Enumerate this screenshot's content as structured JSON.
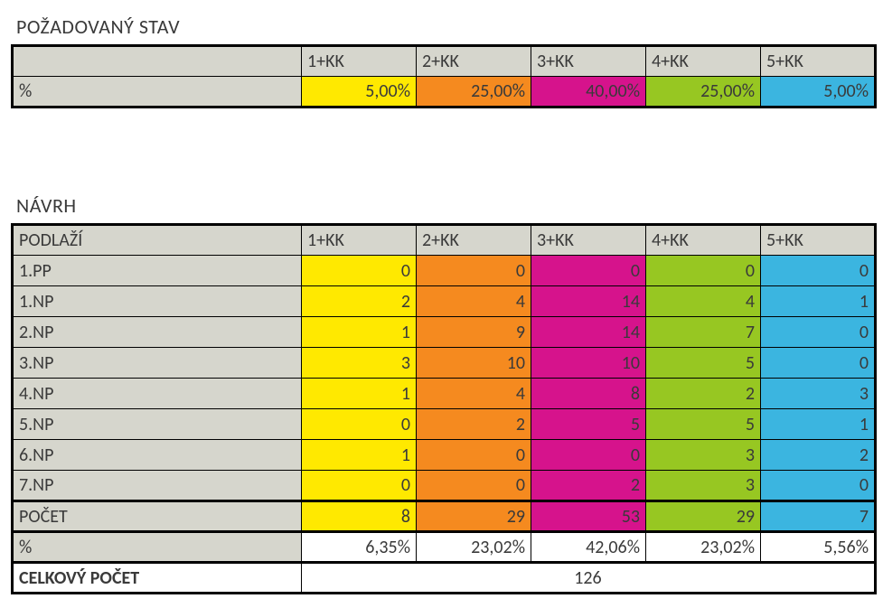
{
  "colors": {
    "header_bg": "#d6d6cd",
    "col1": "#ffe900",
    "col2": "#f58a1f",
    "col3": "#d6138c",
    "col4": "#97c722",
    "col5": "#3bb5e0",
    "text": "#3a3a3a",
    "border": "#000000",
    "white": "#ffffff"
  },
  "columns": [
    "1+KK",
    "2+KK",
    "3+KK",
    "4+KK",
    "5+KK"
  ],
  "pozadovany": {
    "title": "POŽADOVANÝ STAV",
    "row_label": "%",
    "values": [
      "5,00%",
      "25,00%",
      "40,00%",
      "25,00%",
      "5,00%"
    ]
  },
  "navrh": {
    "title": "NÁVRH",
    "header_label": "PODLAŽÍ",
    "rows": [
      {
        "label": "1.PP",
        "v": [
          "0",
          "0",
          "0",
          "0",
          "0"
        ]
      },
      {
        "label": "1.NP",
        "v": [
          "2",
          "4",
          "14",
          "4",
          "1"
        ]
      },
      {
        "label": "2.NP",
        "v": [
          "1",
          "9",
          "14",
          "7",
          "0"
        ]
      },
      {
        "label": "3.NP",
        "v": [
          "3",
          "10",
          "10",
          "5",
          "0"
        ]
      },
      {
        "label": "4.NP",
        "v": [
          "1",
          "4",
          "8",
          "2",
          "3"
        ]
      },
      {
        "label": "5.NP",
        "v": [
          "0",
          "2",
          "5",
          "5",
          "1"
        ]
      },
      {
        "label": "6.NP",
        "v": [
          "1",
          "0",
          "0",
          "3",
          "2"
        ]
      },
      {
        "label": "7.NP",
        "v": [
          "0",
          "0",
          "2",
          "3",
          "0"
        ]
      }
    ],
    "pocet": {
      "label": "POČET",
      "v": [
        "8",
        "29",
        "53",
        "29",
        "7"
      ]
    },
    "percent": {
      "label": "%",
      "v": [
        "6,35%",
        "23,02%",
        "42,06%",
        "23,02%",
        "5,56%"
      ]
    },
    "celkovy": {
      "label": "CELKOVÝ POČET",
      "value": "126"
    }
  }
}
